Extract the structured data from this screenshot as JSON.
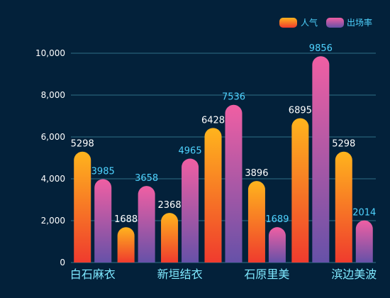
{
  "chart_data": {
    "type": "bar",
    "categories": [
      "白石麻衣",
      "",
      "新垣结衣",
      "",
      "石原里美",
      "",
      "滨边美波"
    ],
    "series": [
      {
        "name": "人气",
        "values": [
          5298,
          1688,
          2368,
          6428,
          3896,
          6895,
          5298
        ]
      },
      {
        "name": "出场率",
        "values": [
          3985,
          3658,
          4965,
          7536,
          1689,
          9856,
          2014
        ]
      }
    ],
    "ylim": [
      0,
      10000
    ],
    "yticks": [
      "0",
      "2,000",
      "4,000",
      "6,000",
      "8,000",
      "10,000"
    ],
    "grid": true,
    "legend": "top-right"
  },
  "colors": {
    "background": "#03213a",
    "grid": "#2f6f87",
    "series0_top": "#ffb41d",
    "series0_bottom": "#ef3b2e",
    "series1_top": "#f05fa3",
    "series1_bottom": "#6651a8",
    "series0_label": "#ffffff",
    "series1_label": "#4fd3ff"
  }
}
